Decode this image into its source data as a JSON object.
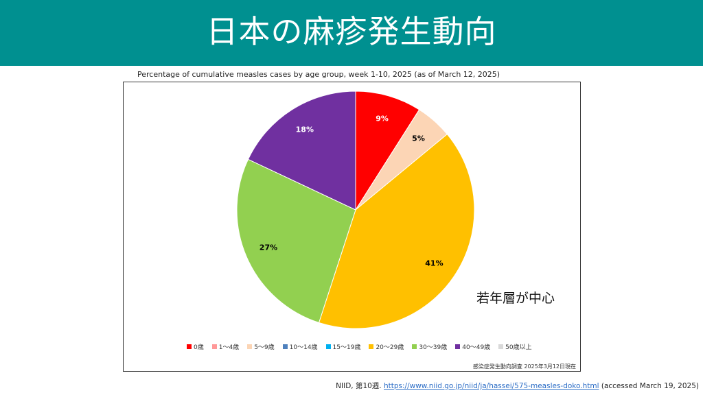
{
  "header": {
    "title": "日本の麻疹発生動向"
  },
  "chart_data": {
    "type": "pie",
    "title": "Percentage of cumulative measles cases by age group, week 1-10, 2025 (as of March 12, 2025)",
    "slices": [
      {
        "label": "0歳",
        "value": 9,
        "display": "9%",
        "color": "#ff0000",
        "text_color": "#ffffff"
      },
      {
        "label": "1～4歳",
        "value": 0,
        "display": "",
        "color": "#ff9999",
        "text_color": "#000000"
      },
      {
        "label": "5～9歳",
        "value": 5,
        "display": "5%",
        "color": "#fcd5b5",
        "text_color": "#000000"
      },
      {
        "label": "10～14歳",
        "value": 0,
        "display": "",
        "color": "#4f81bd",
        "text_color": "#000000"
      },
      {
        "label": "15～19歳",
        "value": 0,
        "display": "",
        "color": "#00b0f0",
        "text_color": "#000000"
      },
      {
        "label": "20～29歳",
        "value": 41,
        "display": "41%",
        "color": "#ffc000",
        "text_color": "#000000"
      },
      {
        "label": "30～39歳",
        "value": 27,
        "display": "27%",
        "color": "#92d050",
        "text_color": "#000000"
      },
      {
        "label": "40～49歳",
        "value": 18,
        "display": "18%",
        "color": "#7030a0",
        "text_color": "#ffffff"
      },
      {
        "label": "50歳以上",
        "value": 0,
        "display": "",
        "color": "#d9d9d9",
        "text_color": "#000000"
      }
    ],
    "legend_position": "bottom",
    "annotation": "若年層が中心",
    "source_note": "感染症発生動向調査 2025年3月12日現在"
  },
  "footer": {
    "prefix": "NIID, 第10週.",
    "url": "https://www.niid.go.jp/niid/ja/hassei/575-measles-doko.html",
    "suffix": "(accessed March 19, 2025)"
  }
}
